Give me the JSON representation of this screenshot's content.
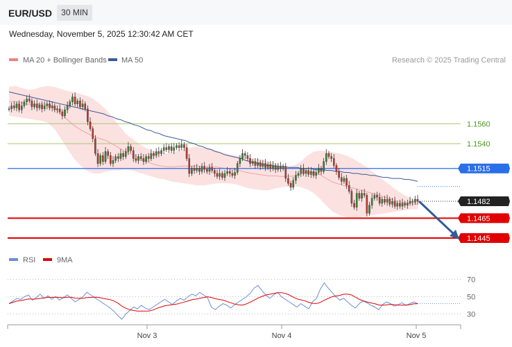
{
  "header": {
    "symbol": "EUR/USD",
    "timeframe": "30 MIN",
    "datetime": "Wednesday, November 5, 2025 12:30:42 AM CET"
  },
  "legend": {
    "ma20_label": "MA 20 + Bollinger Bands",
    "ma50_label": "MA 50",
    "credit": "Research © 2025 Trading Central",
    "ma20_color": "#f08080",
    "ma50_color": "#3a5a98"
  },
  "rsi_legend": {
    "rsi_label": "RSI",
    "ma_label": "9MA",
    "rsi_color": "#6a8fd8",
    "ma_color": "#e00000"
  },
  "chart_data": {
    "type": "candlestick",
    "y_range": [
      1.14345,
      1.16105
    ],
    "x_ticks": [
      "Nov 3",
      "Nov 4",
      "Nov 5"
    ],
    "levels": [
      {
        "value": 1.156,
        "label": "1.1560",
        "kind": "target",
        "color": "#a5c76f",
        "text_color": "#4a9a1a"
      },
      {
        "value": 1.154,
        "label": "1.1540",
        "kind": "target",
        "color": "#a5c76f",
        "text_color": "#4a9a1a"
      },
      {
        "value": 1.1515,
        "label": "1.1515",
        "kind": "pivot",
        "color": "#2a6ee8",
        "text_color": "#ffffff"
      },
      {
        "value": 1.1482,
        "label": "1.1482",
        "kind": "last",
        "color": "#222222",
        "text_color": "#ffffff"
      },
      {
        "value": 1.1465,
        "label": "1.1465",
        "kind": "support",
        "color": "#e00000",
        "text_color": "#ffffff"
      },
      {
        "value": 1.1445,
        "label": "1.1445",
        "kind": "support",
        "color": "#e00000",
        "text_color": "#ffffff"
      }
    ],
    "forecast_arrow": {
      "from": 1.1482,
      "to": 1.1445,
      "color": "#2f5c9a"
    },
    "closes": [
      1.1575,
      1.1578,
      1.1576,
      1.158,
      1.1574,
      1.1578,
      1.1582,
      1.1585,
      1.1583,
      1.1577,
      1.158,
      1.1576,
      1.1579,
      1.1575,
      1.1578,
      1.158,
      1.1576,
      1.1578,
      1.1574,
      1.1575,
      1.1572,
      1.1568,
      1.1574,
      1.1578,
      1.1582,
      1.1587,
      1.158,
      1.1583,
      1.1577,
      1.158,
      1.1575,
      1.1562,
      1.1555,
      1.1545,
      1.153,
      1.152,
      1.1528,
      1.1522,
      1.1532,
      1.1528,
      1.152,
      1.1523,
      1.1527,
      1.1525,
      1.153,
      1.1527,
      1.1532,
      1.1537,
      1.1533,
      1.1525,
      1.1523,
      1.1527,
      1.1525,
      1.1522,
      1.1527,
      1.1525,
      1.153,
      1.1528,
      1.1532,
      1.153,
      1.1533,
      1.1536,
      1.1534,
      1.1537,
      1.1533,
      1.1536,
      1.1538,
      1.1536,
      1.1539,
      1.1536,
      1.1525,
      1.151,
      1.1515,
      1.1513,
      1.1515,
      1.1512,
      1.1517,
      1.1514,
      1.1512,
      1.1516,
      1.1513,
      1.151,
      1.1507,
      1.151,
      1.1506,
      1.151,
      1.1512,
      1.151,
      1.1508,
      1.1511,
      1.152,
      1.1525,
      1.153,
      1.1528,
      1.1525,
      1.152,
      1.1522,
      1.1518,
      1.1521,
      1.1517,
      1.152,
      1.1516,
      1.1519,
      1.1515,
      1.1518,
      1.1514,
      1.1517,
      1.1515,
      1.1517,
      1.1505,
      1.15,
      1.1496,
      1.1503,
      1.1508,
      1.151,
      1.1515,
      1.151,
      1.1513,
      1.1509,
      1.1512,
      1.1508,
      1.1511,
      1.1515,
      1.1512,
      1.1522,
      1.153,
      1.1527,
      1.1525,
      1.1518,
      1.1512,
      1.1506,
      1.1502,
      1.1505,
      1.1498,
      1.1492,
      1.148,
      1.1476,
      1.149,
      1.1485,
      1.149,
      1.1488,
      1.147,
      1.1478,
      1.1485,
      1.1488,
      1.1486,
      1.148,
      1.1484,
      1.1481,
      1.1484,
      1.1479,
      1.1482,
      1.1477,
      1.148,
      1.1477,
      1.148,
      1.1478,
      1.148,
      1.1482,
      1.1481,
      1.1484,
      1.1482
    ],
    "ma50": [
      1.1592,
      1.1591,
      1.159,
      1.1589,
      1.1588,
      1.1587,
      1.1586,
      1.1585,
      1.1584,
      1.1583,
      1.1582,
      1.1581,
      1.158,
      1.1579,
      1.1578,
      1.1577,
      1.1576,
      1.1575,
      1.1574,
      1.1573,
      1.1572,
      1.1571,
      1.157,
      1.1568,
      1.1567,
      1.1565,
      1.1564,
      1.1562,
      1.1561,
      1.1559,
      1.1558,
      1.1556,
      1.1554,
      1.1553,
      1.1551,
      1.155,
      1.1548,
      1.1547,
      1.1546,
      1.1545,
      1.1544,
      1.1543,
      1.1541,
      1.154,
      1.1538,
      1.1537,
      1.1535,
      1.1534,
      1.1532,
      1.1531,
      1.1529,
      1.1528,
      1.1527,
      1.1526,
      1.1525,
      1.1523,
      1.1522,
      1.1521,
      1.152,
      1.1519,
      1.1518,
      1.1518,
      1.1517,
      1.1517,
      1.1517,
      1.1516,
      1.1516,
      1.1516,
      1.1515,
      1.1515,
      1.1515,
      1.1514,
      1.1514,
      1.1514,
      1.1513,
      1.1513,
      1.1512,
      1.1512,
      1.1511,
      1.1511,
      1.151,
      1.151,
      1.1509,
      1.1509,
      1.1508,
      1.1508,
      1.1507,
      1.1506,
      1.1506,
      1.1505,
      1.1505,
      1.1505,
      1.1504,
      1.1504,
      1.1503,
      1.1502
    ],
    "ma20_upper": [
      1.1597,
      1.1598,
      1.1596,
      1.1594,
      1.1595,
      1.1597,
      1.1598,
      1.1597,
      1.1595,
      1.1593,
      1.1592,
      1.159,
      1.1588,
      1.1585,
      1.158,
      1.1574,
      1.1566,
      1.1558,
      1.155,
      1.1545,
      1.154,
      1.1536,
      1.1533,
      1.1531,
      1.153,
      1.1531,
      1.1533,
      1.1535,
      1.1536,
      1.1537,
      1.1536,
      1.1535,
      1.1533,
      1.1531,
      1.1529,
      1.1528,
      1.1527,
      1.1526,
      1.1525,
      1.1524,
      1.1522,
      1.152,
      1.1518,
      1.1517,
      1.1518,
      1.1522,
      1.1528,
      1.1532,
      1.1533,
      1.1532,
      1.1531,
      1.153,
      1.1528,
      1.1525,
      1.1521,
      1.1517,
      1.1512,
      1.1507,
      1.1502,
      1.1497,
      1.1492,
      1.1488,
      1.1485,
      1.1484
    ],
    "ma20_lower": [
      1.1568,
      1.1567,
      1.1566,
      1.1565,
      1.1564,
      1.1563,
      1.1561,
      1.1555,
      1.1545,
      1.1535,
      1.1525,
      1.1518,
      1.1513,
      1.151,
      1.151,
      1.1512,
      1.1513,
      1.1513,
      1.1514,
      1.1513,
      1.1511,
      1.1509,
      1.1507,
      1.1505,
      1.1504,
      1.1502,
      1.1501,
      1.15,
      1.1499,
      1.1498,
      1.1498,
      1.1499,
      1.15,
      1.15,
      1.15,
      1.1499,
      1.1497,
      1.1495,
      1.1494,
      1.1493,
      1.1493,
      1.1495,
      1.1496,
      1.1497,
      1.1497,
      1.1496,
      1.1494,
      1.149,
      1.1484,
      1.1477,
      1.1471,
      1.1468,
      1.1466,
      1.1466,
      1.1466,
      1.1467,
      1.1468,
      1.1469,
      1.147,
      1.1471,
      1.1472,
      1.1473,
      1.1474,
      1.1474
    ],
    "rsi": {
      "y_ticks": [
        70,
        50,
        30
      ],
      "y_range": [
        20,
        80
      ],
      "values": [
        42,
        45,
        48,
        47,
        50,
        52,
        46,
        49,
        53,
        48,
        51,
        47,
        50,
        46,
        49,
        52,
        48,
        44,
        47,
        50,
        55,
        52,
        49,
        46,
        43,
        40,
        37,
        33,
        28,
        24,
        30,
        34,
        38,
        36,
        40,
        37,
        35,
        38,
        41,
        44,
        47,
        44,
        41,
        45,
        48,
        46,
        50,
        53,
        51,
        55,
        52,
        49,
        38,
        35,
        39,
        42,
        40,
        37,
        41,
        44,
        47,
        50,
        54,
        60,
        63,
        57,
        52,
        48,
        52,
        55,
        50,
        47,
        44,
        41,
        38,
        42,
        39,
        36,
        44,
        48,
        59,
        66,
        60,
        55,
        50,
        46,
        48,
        44,
        40,
        37,
        42,
        45,
        43,
        40,
        38,
        35,
        41,
        44,
        42,
        39,
        41,
        43,
        40,
        42,
        44,
        42
      ]
    }
  }
}
